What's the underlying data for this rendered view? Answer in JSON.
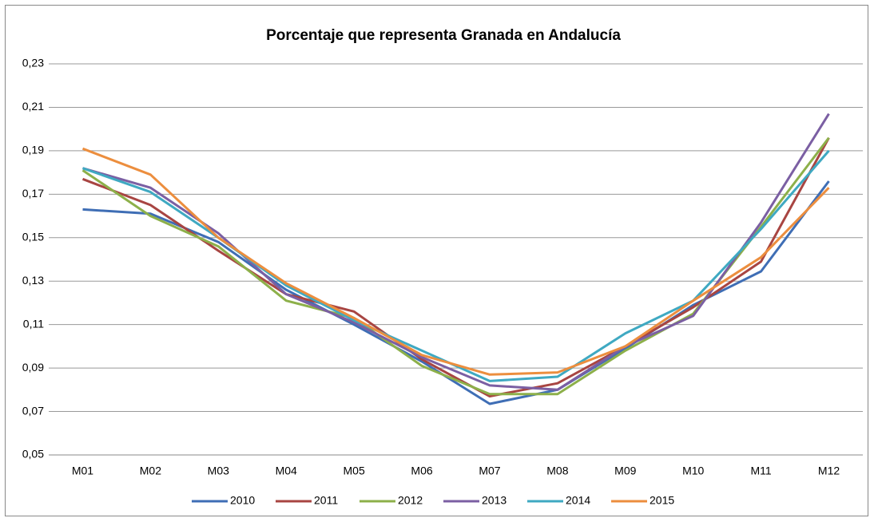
{
  "chart_data": {
    "type": "line",
    "title": "Porcentaje que representa Granada en Andalucía",
    "categories": [
      "M01",
      "M02",
      "M03",
      "M04",
      "M05",
      "M06",
      "M07",
      "M08",
      "M09",
      "M10",
      "M11",
      "M12"
    ],
    "series": [
      {
        "name": "2010",
        "color": "#3f6eb5",
        "values": [
          0.163,
          0.161,
          0.148,
          0.126,
          0.11,
          0.093,
          0.0735,
          0.08,
          0.099,
          0.119,
          0.1345,
          0.176
        ]
      },
      {
        "name": "2011",
        "color": "#a84542",
        "values": [
          0.177,
          0.165,
          0.144,
          0.124,
          0.116,
          0.094,
          0.077,
          0.083,
          0.1,
          0.118,
          0.139,
          0.196
        ]
      },
      {
        "name": "2012",
        "color": "#8db04a",
        "values": [
          0.181,
          0.16,
          0.146,
          0.121,
          0.113,
          0.091,
          0.078,
          0.078,
          0.098,
          0.115,
          0.155,
          0.196
        ]
      },
      {
        "name": "2013",
        "color": "#7b5fa3",
        "values": [
          0.182,
          0.173,
          0.152,
          0.124,
          0.111,
          0.095,
          0.082,
          0.08,
          0.1,
          0.114,
          0.157,
          0.207
        ]
      },
      {
        "name": "2014",
        "color": "#3fa9c2",
        "values": [
          0.182,
          0.171,
          0.15,
          0.128,
          0.112,
          0.098,
          0.084,
          0.086,
          0.106,
          0.121,
          0.154,
          0.19
        ]
      },
      {
        "name": "2015",
        "color": "#ec8e3e",
        "values": [
          0.191,
          0.179,
          0.15,
          0.129,
          0.113,
          0.096,
          0.087,
          0.088,
          0.1,
          0.121,
          0.141,
          0.173
        ]
      }
    ],
    "ylim": [
      0.05,
      0.23
    ],
    "yticks": [
      {
        "value": 0.05,
        "label": "0,05"
      },
      {
        "value": 0.07,
        "label": "0,07"
      },
      {
        "value": 0.09,
        "label": "0,09"
      },
      {
        "value": 0.11,
        "label": "0,11"
      },
      {
        "value": 0.13,
        "label": "0,13"
      },
      {
        "value": 0.15,
        "label": "0,15"
      },
      {
        "value": 0.17,
        "label": "0,17"
      },
      {
        "value": 0.19,
        "label": "0,19"
      },
      {
        "value": 0.21,
        "label": "0,21"
      },
      {
        "value": 0.23,
        "label": "0,23"
      }
    ],
    "grid": true,
    "legend": "bottom"
  }
}
